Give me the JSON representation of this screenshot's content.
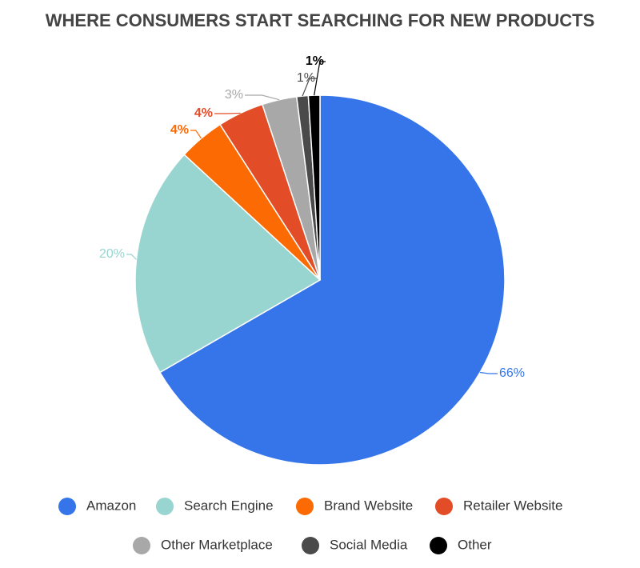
{
  "chart_data": {
    "type": "pie",
    "title": "WHERE CONSUMERS START SEARCHING FOR NEW PRODUCTS",
    "categories": [
      "Amazon",
      "Search Engine",
      "Brand Website",
      "Retailer Website",
      "Other Marketplace",
      "Social Media",
      "Other"
    ],
    "values": [
      66,
      20,
      4,
      4,
      3,
      1,
      1
    ],
    "value_labels": [
      "66%",
      "20%",
      "4%",
      "4%",
      "3%",
      "1%",
      "1%"
    ],
    "colors": [
      "#3575e9",
      "#98d5d0",
      "#fc6a04",
      "#e24c27",
      "#a8a8a8",
      "#4a4a4a",
      "#000000"
    ],
    "legend": "bottom"
  }
}
